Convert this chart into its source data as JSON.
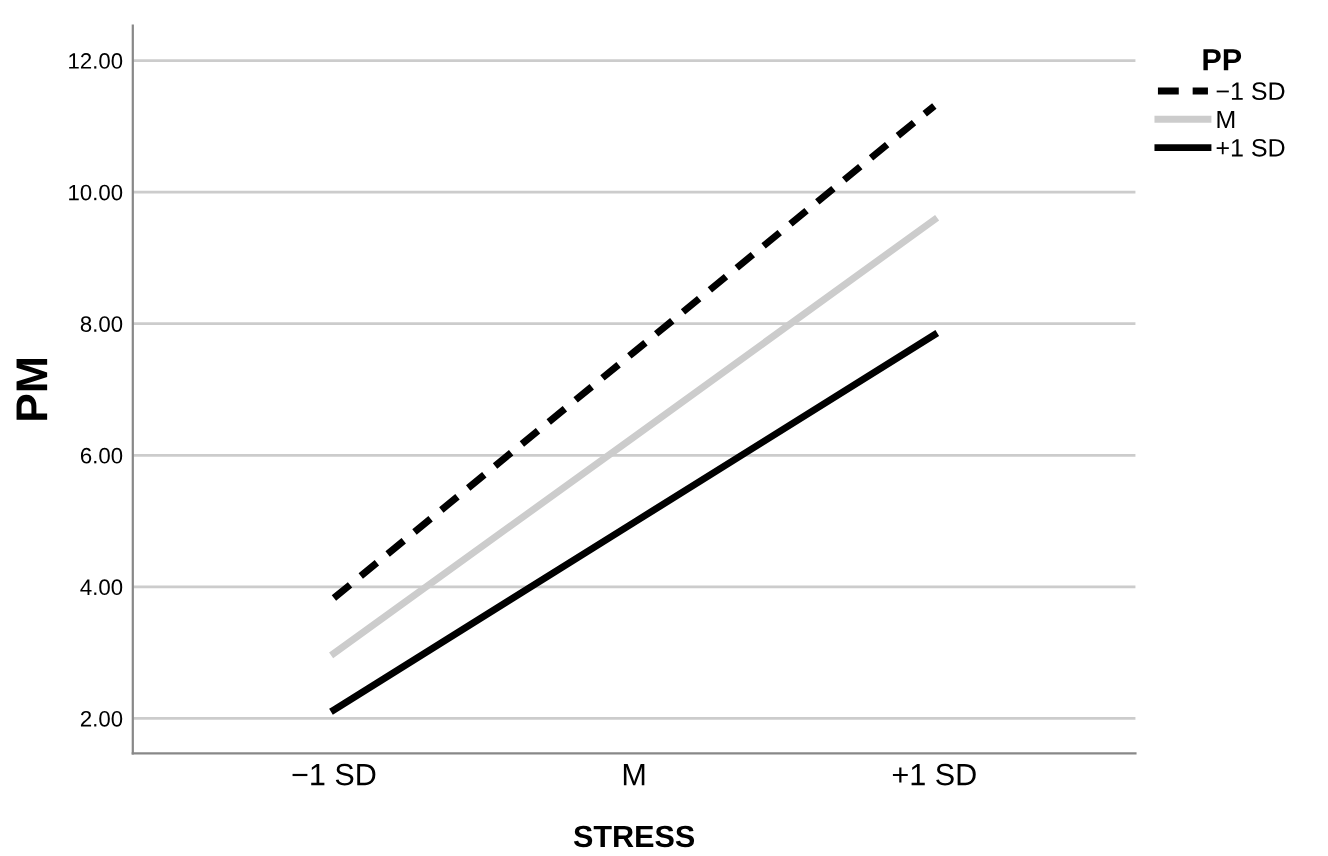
{
  "chart_data": {
    "type": "line",
    "xlabel": "STRESS",
    "ylabel": "PM",
    "legend_title": "PP",
    "legend": "top right",
    "grid": "y",
    "categories": [
      "−1 SD",
      "M",
      "+1 SD"
    ],
    "ylim": [
      1.47,
      12.53
    ],
    "yticks": [
      {
        "value": 2,
        "label": "2.00"
      },
      {
        "value": 4,
        "label": "4.00"
      },
      {
        "value": 6,
        "label": "6.00"
      },
      {
        "value": 8,
        "label": "8.00"
      },
      {
        "value": 10,
        "label": "10.00"
      },
      {
        "value": 12,
        "label": "12.00"
      }
    ],
    "series": [
      {
        "name": "−1 SD",
        "color": "#000000",
        "line_style": "dashed",
        "values": [
          3.83,
          7.57,
          11.31
        ]
      },
      {
        "name": "M",
        "color": "#cccccc",
        "line_style": "solid",
        "values": [
          2.99,
          6.28,
          9.58
        ]
      },
      {
        "name": "+1 SD",
        "color": "#000000",
        "line_style": "solid",
        "values": [
          2.13,
          4.98,
          7.83
        ]
      }
    ]
  }
}
